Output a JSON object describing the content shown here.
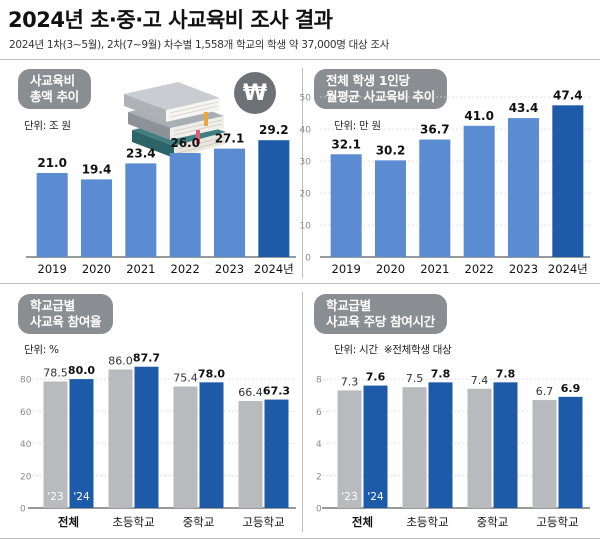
{
  "header": {
    "title": "2024년 초·중·고 사교육비 조사 결과",
    "subtitle": "2024년 1차(3~5월), 2차(7~9월) 차수별 1,558개 학교의 학생 약 37,000명 대상 조사"
  },
  "icons": {
    "books": "book-stack-icon",
    "money": "won-coin-icon",
    "money_glyph": "₩"
  },
  "colors": {
    "blue_light": "#5b8bd0",
    "blue_dark": "#1d5aa8",
    "gray": "#b8babd",
    "pill": "#8a8d91"
  },
  "chart_data": [
    {
      "id": "total",
      "type": "bar",
      "title_line1": "사교육비",
      "title_line2": "총액 추이",
      "unit": "단위: 조 원",
      "categories": [
        "2019",
        "2020",
        "2021",
        "2022",
        "2023",
        "2024년"
      ],
      "values": [
        21.0,
        19.4,
        23.4,
        26.0,
        27.1,
        29.2
      ],
      "labels": [
        "21.0",
        "19.4",
        "23.4",
        "26.0",
        "27.1",
        "29.2"
      ],
      "ylim": [
        0,
        40
      ],
      "highlight_last": true
    },
    {
      "id": "per_student",
      "type": "bar",
      "title_line1": "전체 학생 1인당",
      "title_line2": "월평균 사교육비 추이",
      "unit": "단위: 만 원",
      "categories": [
        "2019",
        "2020",
        "2021",
        "2022",
        "2023",
        "2024년"
      ],
      "values": [
        32.1,
        30.2,
        36.7,
        41.0,
        43.4,
        47.4
      ],
      "labels": [
        "32.1",
        "30.2",
        "36.7",
        "41.0",
        "43.4",
        "47.4"
      ],
      "ylim": [
        0,
        50
      ],
      "yticks": [
        "0",
        "10",
        "20",
        "30",
        "40",
        "50"
      ],
      "highlight_last": true
    },
    {
      "id": "participation",
      "type": "bar",
      "title_line1": "학교급별",
      "title_line2": "사교육 참여율",
      "unit": "단위: %",
      "categories": [
        "전체",
        "초등학교",
        "중학교",
        "고등학교"
      ],
      "series": [
        {
          "name": "'23",
          "values": [
            78.5,
            86.0,
            75.4,
            66.4
          ],
          "labels": [
            "78.5",
            "86.0",
            "75.4",
            "66.4"
          ]
        },
        {
          "name": "'24",
          "values": [
            80.0,
            87.7,
            78.0,
            67.3
          ],
          "labels": [
            "80.0",
            "87.7",
            "78.0",
            "67.3"
          ]
        }
      ],
      "ylim": [
        0,
        90
      ],
      "yticks": [
        "0",
        "20",
        "40",
        "60",
        "80"
      ]
    },
    {
      "id": "weekly_hours",
      "type": "bar",
      "title_line1": "학교급별",
      "title_line2": "사교육 주당 참여시간",
      "unit": "단위: 시간",
      "note": "※전체학생 대상",
      "categories": [
        "전체",
        "초등학교",
        "중학교",
        "고등학교"
      ],
      "series": [
        {
          "name": "'23",
          "values": [
            7.3,
            7.5,
            7.4,
            6.7
          ],
          "labels": [
            "7.3",
            "7.5",
            "7.4",
            "6.7"
          ]
        },
        {
          "name": "'24",
          "values": [
            7.6,
            7.8,
            7.8,
            6.9
          ],
          "labels": [
            "7.6",
            "7.8",
            "7.8",
            "6.9"
          ]
        }
      ],
      "ylim": [
        0,
        9
      ],
      "yticks": [
        "0",
        "2",
        "4",
        "6",
        "8"
      ]
    }
  ]
}
